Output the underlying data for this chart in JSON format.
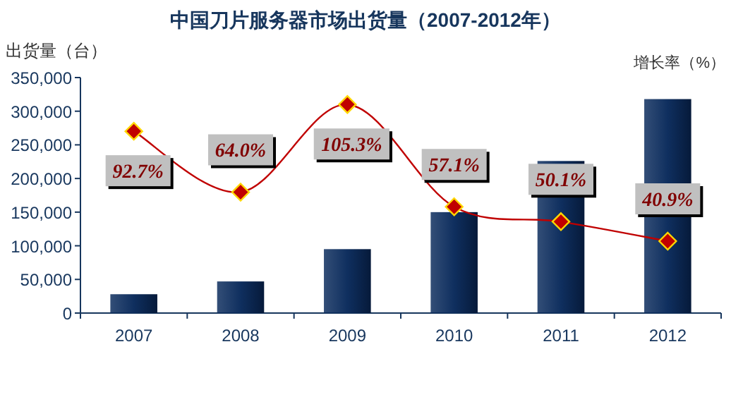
{
  "chart_data": {
    "type": "bar",
    "title": "中国刀片服务器市场出货量（2007-2012年）",
    "ylabel": "出货量（台）",
    "y2label": "增长率（%）",
    "categories": [
      "2007",
      "2008",
      "2009",
      "2010",
      "2011",
      "2012"
    ],
    "series": [
      {
        "color": "#0f2f5f",
        "values": [
          28000,
          47000,
          95000,
          150000,
          226000,
          318000
        ]
      },
      {
        "type": "line",
        "axis": "y2",
        "color": "#c00000",
        "marker": "diamond",
        "values": [
          92.7,
          64.0,
          105.3,
          57.1,
          50.1,
          40.9
        ],
        "value_labels": [
          "92.7%",
          "64.0%",
          "105.3%",
          "57.1%",
          "50.1%",
          "40.9%"
        ]
      }
    ],
    "ylim": [
      0,
      350000
    ],
    "yticks": [
      0,
      {
        "value": 50000,
        "label": "50,000"
      },
      {
        "value": 100000,
        "label": "100,000"
      },
      {
        "value": 150000,
        "label": "150,000"
      },
      {
        "value": 200000,
        "label": "200,000"
      },
      {
        "value": 250000,
        "label": "250,000"
      },
      {
        "value": 300000,
        "label": "300,000"
      },
      {
        "value": 350000,
        "label": "350,000"
      }
    ],
    "y2lim": [
      7,
      118
    ],
    "tick_labels": "y"
  }
}
